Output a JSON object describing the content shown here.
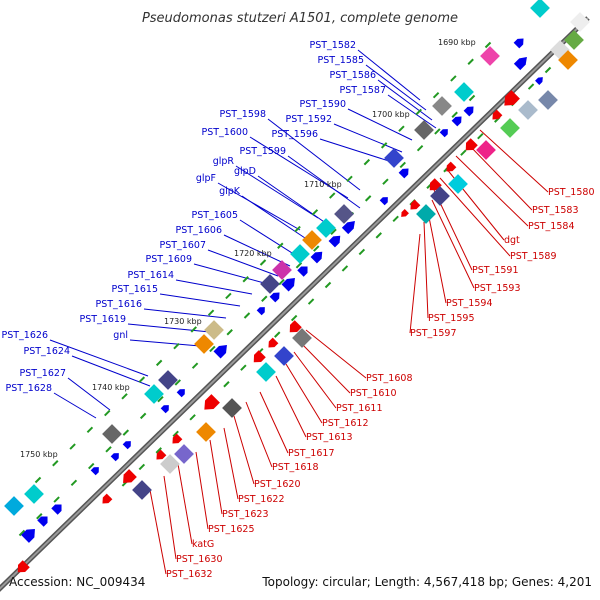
{
  "title": "Pseudomonas stutzeri A1501, complete genome",
  "footer": {
    "accession": "Accession: NC_009434",
    "topology": "Topology: circular; Length: 4,567,418 bp; Genes: 4,201"
  },
  "colors": {
    "upper_label": "#0000cc",
    "lower_label": "#cc0000",
    "backbone": "#777777",
    "tick": "#229922"
  },
  "kbp_markers": [
    "1690 kbp",
    "1700 kbp",
    "1710 kbp",
    "1720 kbp",
    "1730 kbp",
    "1740 kbp",
    "1750 kbp"
  ],
  "upper_labels": [
    "PST_1582",
    "PST_1585",
    "PST_1586",
    "PST_1587",
    "PST_1590",
    "PST_1592",
    "PST_1596",
    "PST_1598",
    "PST_1600",
    "PST_1599",
    "glpR",
    "glpD",
    "glpF",
    "glpK",
    "PST_1605",
    "PST_1606",
    "PST_1607",
    "PST_1609",
    "PST_1614",
    "PST_1615",
    "PST_1616",
    "PST_1619",
    "gnl",
    "PST_1626",
    "PST_1624",
    "PST_1627",
    "PST_1628"
  ],
  "lower_labels": [
    "PST_1580",
    "PST_1583",
    "PST_1584",
    "dgt",
    "PST_1589",
    "PST_1591",
    "PST_1593",
    "PST_1594",
    "PST_1595",
    "PST_1597",
    "PST_1608",
    "PST_1610",
    "PST_1611",
    "PST_1612",
    "PST_1613",
    "PST_1617",
    "PST_1618",
    "PST_1620",
    "PST_1622",
    "PST_1623",
    "PST_1625",
    "katG",
    "PST_1630",
    "PST_1632"
  ]
}
